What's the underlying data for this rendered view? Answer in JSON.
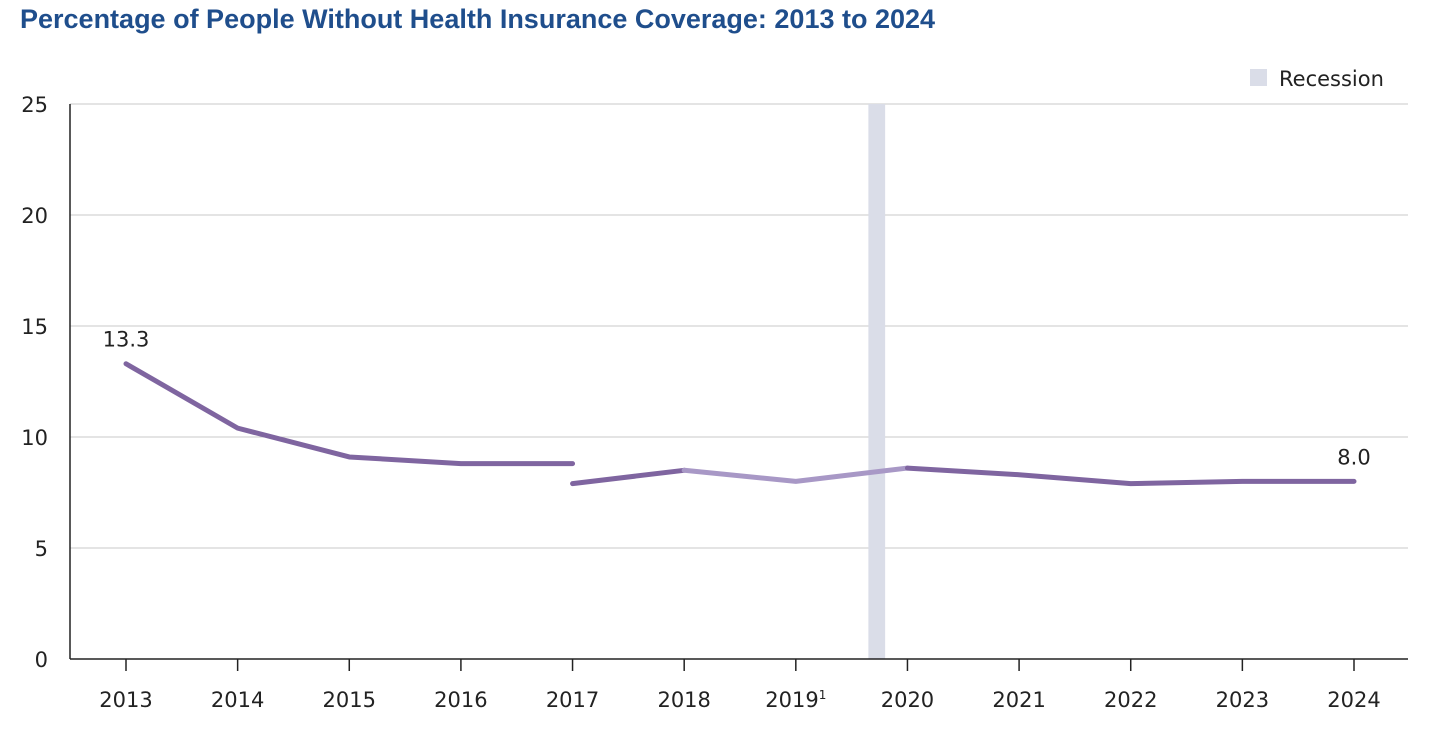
{
  "chart_data": {
    "type": "line",
    "title": "Percentage of People Without Health Insurance Coverage: 2013 to 2024",
    "xlabel": "",
    "ylabel": "",
    "categories": [
      "2013",
      "2014",
      "2015",
      "2016",
      "2017",
      "2018",
      "2019",
      "2020",
      "2021",
      "2022",
      "2023",
      "2024"
    ],
    "category_superscripts": {
      "2019": "1"
    },
    "ylim": [
      0,
      25
    ],
    "yticks": [
      0,
      5,
      10,
      15,
      20,
      25
    ],
    "grid": true,
    "legend": {
      "placement": "top-right",
      "entries": [
        {
          "label": "Recession",
          "color": "#dadde8"
        }
      ]
    },
    "recession": {
      "start": 2019.65,
      "end": 2019.8
    },
    "series": [
      {
        "points": [
          [
            "2013",
            13.3
          ],
          [
            "2014",
            10.4
          ],
          [
            "2015",
            9.1
          ],
          [
            "2016",
            8.8
          ],
          [
            "2017",
            8.8
          ]
        ],
        "color": "#7f65a0"
      },
      {
        "points": [
          [
            "2017",
            7.9
          ],
          [
            "2018",
            8.5
          ]
        ],
        "color": "#7f65a0"
      },
      {
        "points": [
          [
            "2018",
            8.5
          ],
          [
            "2019",
            8.0
          ],
          [
            "2020",
            8.6
          ]
        ],
        "color": "#a898c6"
      },
      {
        "points": [
          [
            "2020",
            8.6
          ],
          [
            "2021",
            8.3
          ],
          [
            "2022",
            7.9
          ],
          [
            "2023",
            8.0
          ],
          [
            "2024",
            8.0
          ]
        ],
        "color": "#7f65a0"
      }
    ],
    "data_labels": [
      {
        "x": "2013",
        "y": 13.3,
        "text": "13.3"
      },
      {
        "x": "2024",
        "y": 8.0,
        "text": "8.0"
      }
    ]
  }
}
